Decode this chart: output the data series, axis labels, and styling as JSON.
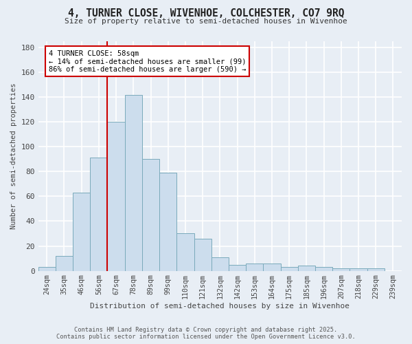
{
  "title_line1": "4, TURNER CLOSE, WIVENHOE, COLCHESTER, CO7 9RQ",
  "title_line2": "Size of property relative to semi-detached houses in Wivenhoe",
  "xlabel": "Distribution of semi-detached houses by size in Wivenhoe",
  "ylabel": "Number of semi-detached properties",
  "categories": [
    "24sqm",
    "35sqm",
    "46sqm",
    "56sqm",
    "67sqm",
    "78sqm",
    "89sqm",
    "99sqm",
    "110sqm",
    "121sqm",
    "132sqm",
    "142sqm",
    "153sqm",
    "164sqm",
    "175sqm",
    "185sqm",
    "196sqm",
    "207sqm",
    "218sqm",
    "229sqm",
    "239sqm"
  ],
  "values": [
    3,
    12,
    63,
    91,
    120,
    142,
    90,
    79,
    30,
    26,
    11,
    5,
    6,
    6,
    3,
    4,
    3,
    2,
    2,
    2,
    0
  ],
  "bar_color": "#ccdded",
  "bar_edge_color": "#7aaabb",
  "red_line_index": 3.5,
  "annotation_text": "4 TURNER CLOSE: 58sqm\n← 14% of semi-detached houses are smaller (99)\n86% of semi-detached houses are larger (590) →",
  "annotation_box_color": "#ffffff",
  "annotation_box_edge_color": "#cc0000",
  "property_line_color": "#cc0000",
  "background_color": "#e8eef5",
  "plot_bg_color": "#e8eef5",
  "grid_color": "#ffffff",
  "footer_line1": "Contains HM Land Registry data © Crown copyright and database right 2025.",
  "footer_line2": "Contains public sector information licensed under the Open Government Licence v3.0.",
  "ylim": [
    0,
    185
  ],
  "yticks": [
    0,
    20,
    40,
    60,
    80,
    100,
    120,
    140,
    160,
    180
  ]
}
